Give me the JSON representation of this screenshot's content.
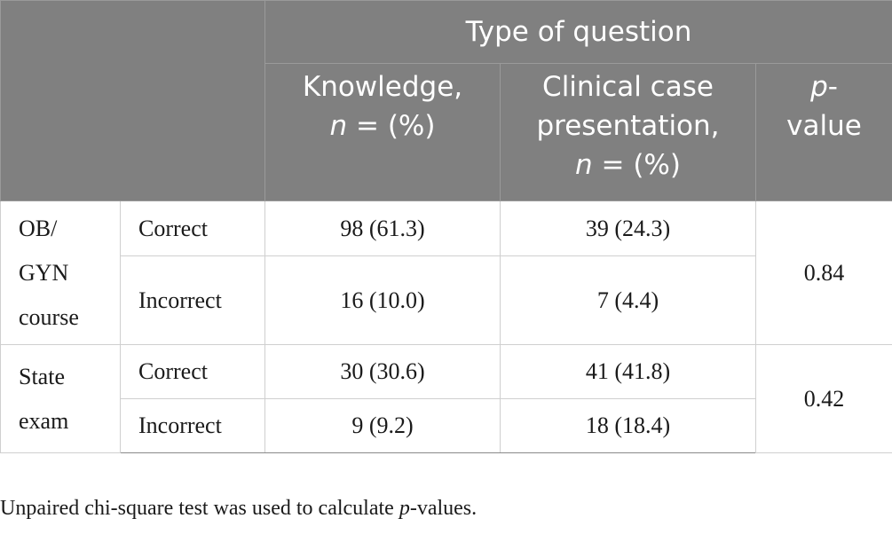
{
  "table": {
    "group_header": "Type of question",
    "columns": {
      "knowledge_l1": "Knowledge,",
      "knowledge_n": "n",
      "knowledge_rest": " = (%)",
      "clinical_l1": "Clinical case",
      "clinical_l2": "presentation,",
      "clinical_n": "n",
      "clinical_rest": " = (%)",
      "pvalue_p": "p",
      "pvalue_dash": "-",
      "pvalue_l2": "value"
    },
    "groups": [
      {
        "label_lines": [
          "OB/",
          "GYN",
          "course"
        ],
        "rows": [
          {
            "label": "Correct",
            "knowledge": "98 (61.3)",
            "clinical": "39 (24.3)"
          },
          {
            "label": "Incorrect",
            "knowledge": "16 (10.0)",
            "clinical": "7 (4.4)"
          }
        ],
        "p_value": "0.84"
      },
      {
        "label_lines": [
          "State",
          "exam"
        ],
        "rows": [
          {
            "label": "Correct",
            "knowledge": "30 (30.6)",
            "clinical": "41 (41.8)"
          },
          {
            "label": "Incorrect",
            "knowledge": "9 (9.2)",
            "clinical": "18 (18.4)"
          }
        ],
        "p_value": "0.42"
      }
    ]
  },
  "footnote": {
    "before": "Unpaired chi-square test was used to calculate ",
    "italic": "p",
    "after": "-values."
  },
  "colors": {
    "header_bg": "#808080",
    "header_text": "#ffffff",
    "grid": "#cfcfcf"
  }
}
